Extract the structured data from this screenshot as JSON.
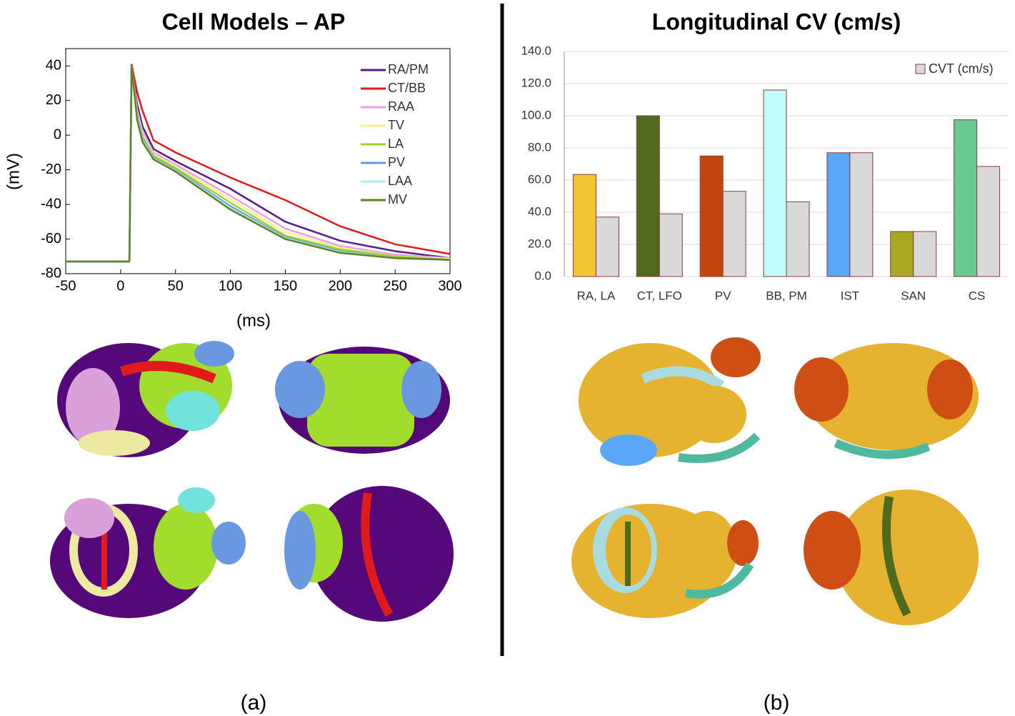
{
  "chart_data": [
    {
      "type": "line",
      "title": "Cell Models – AP",
      "xlabel": "(ms)",
      "ylabel": "(mV)",
      "xlim": [
        -50,
        300
      ],
      "xticks": [
        -50,
        0,
        50,
        100,
        150,
        200,
        250,
        300
      ],
      "ylim": [
        -80,
        50
      ],
      "yticks": [
        -80,
        -60,
        -40,
        -20,
        0,
        20,
        40
      ],
      "x": [
        -50,
        0,
        8,
        10,
        15,
        20,
        30,
        50,
        100,
        150,
        200,
        250,
        300
      ],
      "series": [
        {
          "name": "RA/PM",
          "color": "#5b1a8c",
          "values": [
            -73,
            -73,
            -73,
            40,
            18,
            5,
            -8,
            -15,
            -31,
            -50,
            -61,
            -67,
            -71
          ]
        },
        {
          "name": "CT/BB",
          "color": "#e01a1a",
          "values": [
            -73,
            -73,
            -73,
            41,
            25,
            14,
            -3,
            -10,
            -24.5,
            -37.5,
            -52.6,
            -63,
            -68.6
          ]
        },
        {
          "name": "RAA",
          "color": "#e7a0e7",
          "values": [
            -73,
            -73,
            -73,
            40,
            15,
            2,
            -10,
            -17,
            -35,
            -54,
            -64,
            -69,
            -71
          ]
        },
        {
          "name": "TV",
          "color": "#f5f08a",
          "values": [
            -73,
            -73,
            -73,
            40,
            13,
            0,
            -11,
            -18,
            -37,
            -56,
            -65,
            -70,
            -71.5
          ]
        },
        {
          "name": "LA",
          "color": "#9ad62a",
          "values": [
            -73,
            -73,
            -73,
            40,
            12,
            -1,
            -12,
            -19,
            -39,
            -58,
            -66,
            -70,
            -72
          ]
        },
        {
          "name": "PV",
          "color": "#6a98e0",
          "values": [
            -73,
            -73,
            -73,
            40,
            11,
            -2,
            -13,
            -20,
            -41,
            -59,
            -67,
            -71,
            -72
          ]
        },
        {
          "name": "LAA",
          "color": "#a8eef0",
          "values": [
            -73,
            -73,
            -73,
            40,
            10,
            -3,
            -13.5,
            -20.5,
            -42,
            -59.5,
            -67.5,
            -71,
            -72
          ]
        },
        {
          "name": "MV",
          "color": "#5e7f24",
          "values": [
            -73,
            -73,
            -73,
            40,
            9,
            -4,
            -14,
            -21,
            -43,
            -60,
            -68,
            -71,
            -72
          ]
        }
      ],
      "legend": "upper right",
      "grid": false
    },
    {
      "type": "bar",
      "title": "Longitudinal CV (cm/s)",
      "categories": [
        "RA, LA",
        "CT, LFO",
        "PV",
        "BB, PM",
        "IST",
        "SAN",
        "CS"
      ],
      "ylim": [
        0,
        140
      ],
      "yticks": [
        {
          "value": 0,
          "label": "0.0"
        },
        {
          "value": 20,
          "label": "20.0"
        },
        {
          "value": 40,
          "label": "40.0"
        },
        {
          "value": 60,
          "label": "60.0"
        },
        {
          "value": 80,
          "label": "80.0"
        },
        {
          "value": 100,
          "label": "100.0"
        },
        {
          "value": 120,
          "label": "120.0"
        },
        {
          "value": 140,
          "label": "140.0"
        }
      ],
      "series": [
        {
          "colors": [
            "#f2c632",
            "#4e6b1d",
            "#c4460f",
            "#c2fbfb",
            "#5aa7f8",
            "#a8a823",
            "#6ac98f"
          ],
          "values": [
            63.5,
            100,
            75,
            116,
            77,
            28,
            97.5
          ]
        },
        {
          "name": "CVT (cm/s)",
          "color": "#d9d9d9",
          "values": [
            37,
            39,
            53,
            46.5,
            77,
            28,
            68.5
          ]
        }
      ],
      "legend": "upper right",
      "grid": true
    }
  ],
  "panel_labels": [
    "(a)",
    "(b)"
  ]
}
